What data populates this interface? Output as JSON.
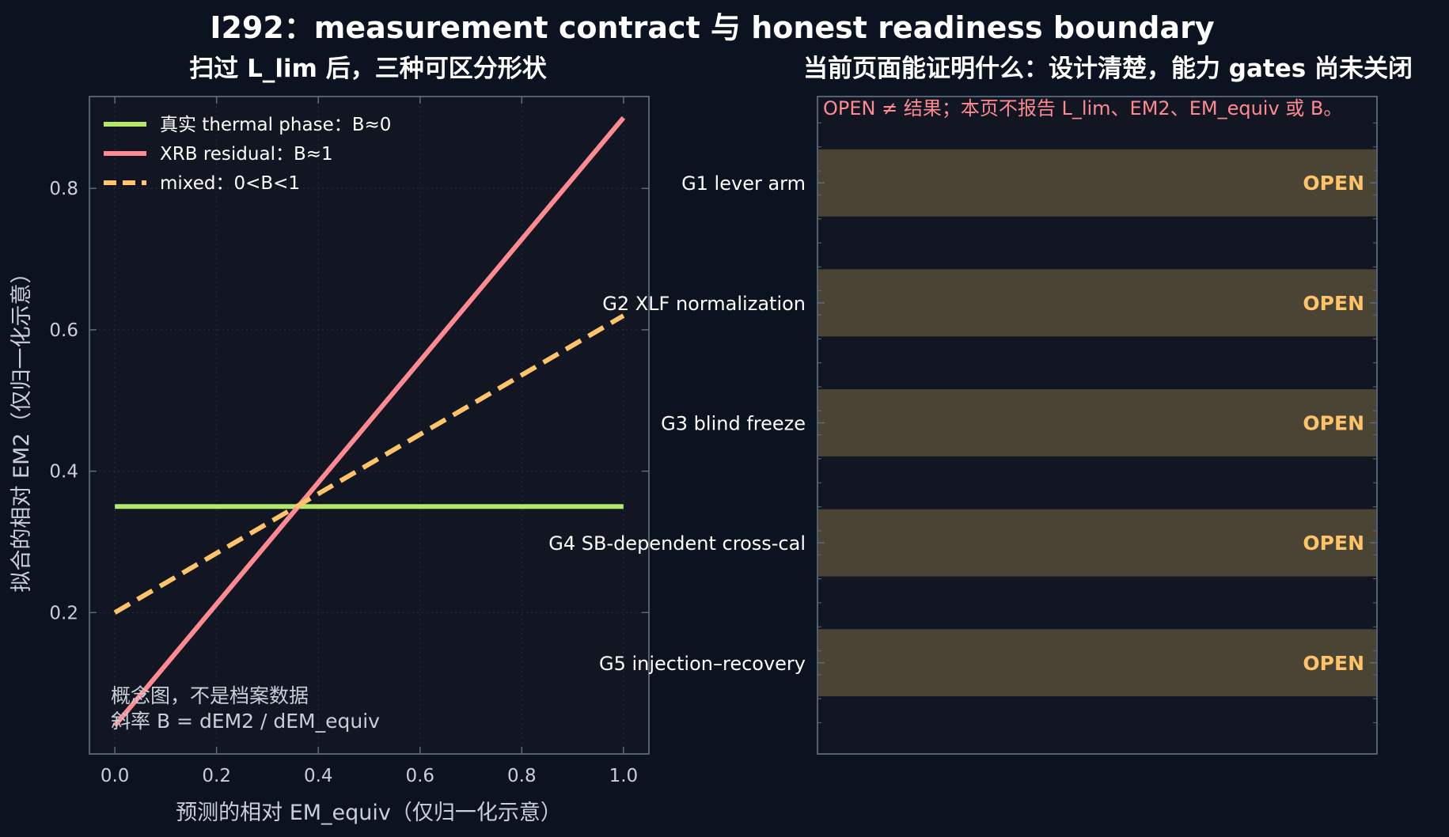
{
  "title": "I292：measurement contract 与 honest readiness boundary",
  "colors": {
    "page_bg": "#0b1320",
    "panel_bg": "#111622",
    "frame": "#5c6b7d",
    "text": "#ffffff",
    "muted": "#c8cfd8",
    "thermal": "#b3e86a",
    "xrb": "#ff8a92",
    "mixed": "#ffc36a",
    "open_band": "#4a4434",
    "open_text": "#ffc36a",
    "notice": "#ff8a92"
  },
  "left_panel": {
    "subtitle": "扫过 L_lim 后，三种可区分形状",
    "annotation_lines": [
      "概念图，不是档案数据",
      "斜率 B = dEM2 / dEM_equiv"
    ]
  },
  "right_panel": {
    "subtitle": "当前页面能证明什么：设计清楚，能力 gates 尚未关闭",
    "notice": "OPEN ≠ 结果；本页不报告 L_lim、EM2、EM_equiv 或 B。",
    "gates": [
      {
        "label": "G1 lever arm",
        "status": "OPEN"
      },
      {
        "label": "G2 XLF normalization",
        "status": "OPEN"
      },
      {
        "label": "G3 blind freeze",
        "status": "OPEN"
      },
      {
        "label": "G4 SB-dependent cross-cal",
        "status": "OPEN"
      },
      {
        "label": "G5 injection–recovery",
        "status": "OPEN"
      }
    ]
  },
  "chart_data": [
    {
      "type": "line",
      "xlabel": "预测的相对 EM_equiv（仅归一化示意）",
      "ylabel": "拟合的相对 EM2（仅归一化示意）",
      "xlim": [
        -0.05,
        1.05
      ],
      "ylim": [
        0.0,
        0.93
      ],
      "xticks": [
        "0.0",
        "0.2",
        "0.4",
        "0.6",
        "0.8",
        "1.0"
      ],
      "yticks": [
        "0.2",
        "0.4",
        "0.6",
        "0.8"
      ],
      "grid": true,
      "legend_position": "top-left",
      "series": [
        {
          "name": "真实 thermal phase：B≈0",
          "style": "solid",
          "color": "#b3e86a",
          "x": [
            0.0,
            1.0
          ],
          "y": [
            0.35,
            0.35
          ]
        },
        {
          "name": "XRB residual：B≈1",
          "style": "solid",
          "color": "#ff8a92",
          "x": [
            0.0,
            1.0
          ],
          "y": [
            0.04,
            0.9
          ]
        },
        {
          "name": "mixed：0<B<1",
          "style": "dashed",
          "color": "#ffc36a",
          "x": [
            0.0,
            1.0
          ],
          "y": [
            0.2,
            0.62
          ]
        }
      ]
    },
    {
      "type": "bar",
      "orientation": "horizontal",
      "categories": [
        "G1 lever arm",
        "G2 XLF normalization",
        "G3 blind freeze",
        "G4 SB-dependent cross-cal",
        "G5 injection–recovery"
      ],
      "values": [
        1,
        1,
        1,
        1,
        1
      ],
      "value_labels": [
        "OPEN",
        "OPEN",
        "OPEN",
        "OPEN",
        "OPEN"
      ]
    }
  ]
}
